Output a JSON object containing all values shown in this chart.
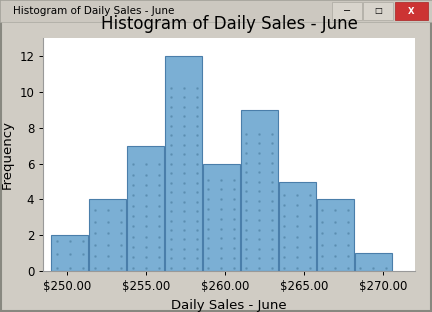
{
  "title": "Histogram of Daily Sales - June",
  "xlabel": "Daily Sales - June",
  "ylabel": "Frequency",
  "bar_heights": [
    2,
    4,
    7,
    12,
    6,
    9,
    5,
    4,
    1
  ],
  "bin_start": 249,
  "bin_width": 2.4,
  "bar_color": "#7BAFD4",
  "bar_edge_color": "#4A7EAA",
  "xtick_values": [
    250,
    255,
    260,
    265,
    270
  ],
  "xtick_labels": [
    "$250.00",
    "$255.00",
    "$260.00",
    "$265.00",
    "$270.00"
  ],
  "ytick_values": [
    0,
    2,
    4,
    6,
    8,
    10,
    12
  ],
  "ylim": [
    0,
    13
  ],
  "xlim": [
    248.5,
    272
  ],
  "outer_bg": "#d0ccc4",
  "plot_bg_color": "#ffffff",
  "title_fontsize": 12,
  "axis_label_fontsize": 9.5,
  "tick_fontsize": 8.5,
  "window_title": "Histogram of Daily Sales - June",
  "titlebar_bg": "#e8e4dc",
  "titlebar_text_color": "#000000",
  "dot_color": "#5588AA"
}
